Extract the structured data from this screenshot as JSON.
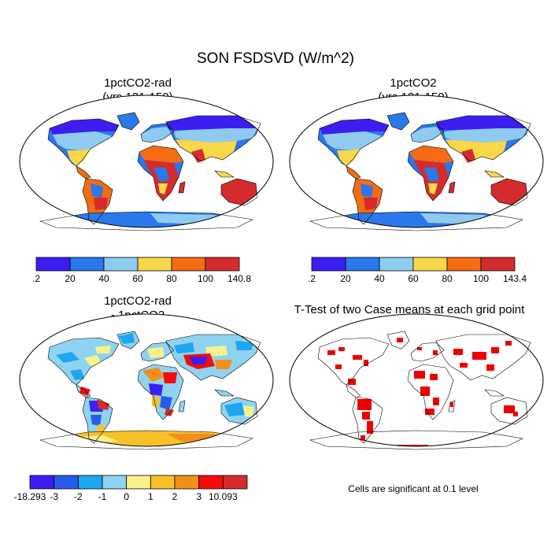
{
  "figure": {
    "title": "SON FSDSVD (W/m^2)"
  },
  "panels": {
    "top_left": {
      "title_line1": "1pctCO2-rad",
      "title_line2": "(yrs 121-150)"
    },
    "top_right": {
      "title_line1": "1pctCO2",
      "title_line2": "(yrs 121-150)"
    },
    "bottom_left": {
      "title_line1": "1pctCO2-rad",
      "title_line2": "- 1pctCO2"
    },
    "bottom_right": {
      "title": "T-Test of two Case means at each grid point",
      "note": "Cells are significant at 0.1 level"
    }
  },
  "colorbars": {
    "top_left": {
      "colors": [
        "#3d1ef0",
        "#2a78eb",
        "#8fcbee",
        "#f8d848",
        "#f36c14",
        "#d42c2c"
      ],
      "labels": [
        ".2",
        "20",
        "40",
        "60",
        "80",
        "100",
        "140.8"
      ]
    },
    "top_right": {
      "colors": [
        "#3d1ef0",
        "#2a78eb",
        "#8fcbee",
        "#f8d848",
        "#f36c14",
        "#d42c2c"
      ],
      "labels": [
        ".2",
        "20",
        "40",
        "60",
        "80",
        "100",
        "143.4"
      ]
    },
    "bottom_left": {
      "colors": [
        "#3d1ef0",
        "#2a5be8",
        "#1ea6f0",
        "#8fd3f2",
        "#faf08c",
        "#f8c12a",
        "#f38e18",
        "#f40c0c",
        "#d42c2c"
      ],
      "labels": [
        "-18.293",
        "-3",
        "-2",
        "-1",
        "0",
        "1",
        "2",
        "3",
        "10.093"
      ]
    }
  },
  "palette": {
    "land_cold": "#3d1ef0",
    "land_cool": "#2a78eb",
    "land_light": "#8fcbee",
    "land_mid": "#f8d848",
    "land_warm": "#f36c14",
    "land_hot": "#d42c2c",
    "significant": "#ee0000"
  }
}
